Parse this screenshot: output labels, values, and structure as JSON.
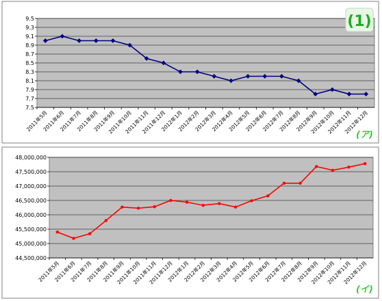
{
  "badge": "(1)",
  "chart_data": [
    {
      "type": "line",
      "marker": "(ア)",
      "categories": [
        "2011年5月",
        "2011年6月",
        "2011年7月",
        "2011年8月",
        "2011年9月",
        "2011年10月",
        "2011年11月",
        "2011年12月",
        "2012年1月",
        "2012年2月",
        "2012年3月",
        "2012年4月",
        "2012年5月",
        "2012年6月",
        "2012年7月",
        "2012年8月",
        "2012年9月",
        "2012年10月",
        "2012年11月",
        "2012年12月"
      ],
      "values": [
        9.0,
        9.1,
        9.0,
        9.0,
        9.0,
        8.9,
        8.6,
        8.5,
        8.3,
        8.3,
        8.2,
        8.1,
        8.2,
        8.2,
        8.2,
        8.1,
        7.8,
        7.9,
        7.8,
        7.8
      ],
      "ylim": [
        7.5,
        9.5
      ],
      "yticks": [
        "7.5",
        "7.7",
        "7.9",
        "8.1",
        "8.3",
        "8.5",
        "8.7",
        "8.9",
        "9.1",
        "9.3",
        "9.5"
      ],
      "grid": true,
      "color": "#000080"
    },
    {
      "type": "line",
      "marker": "(イ)",
      "categories": [
        "2011年5月",
        "2011年6月",
        "2011年7月",
        "2011年8月",
        "2011年9月",
        "2011年10月",
        "2011年11月",
        "2011年12月",
        "2012年1月",
        "2012年2月",
        "2012年3月",
        "2012年4月",
        "2012年5月",
        "2012年6月",
        "2012年7月",
        "2012年8月",
        "2012年9月",
        "2012年10月",
        "2012年11月",
        "2012年12月"
      ],
      "values": [
        45400000,
        45180000,
        45340000,
        45800000,
        46270000,
        46230000,
        46280000,
        46500000,
        46440000,
        46330000,
        46390000,
        46270000,
        46490000,
        46660000,
        47100000,
        47100000,
        47680000,
        47550000,
        47660000,
        47780000
      ],
      "ylim": [
        44500000,
        48000000
      ],
      "yticks": [
        "44,500,000",
        "45,000,000",
        "45,500,000",
        "46,000,000",
        "46,500,000",
        "47,000,000",
        "47,500,000",
        "48,000,000"
      ],
      "grid": true,
      "color": "#ff0000"
    }
  ]
}
